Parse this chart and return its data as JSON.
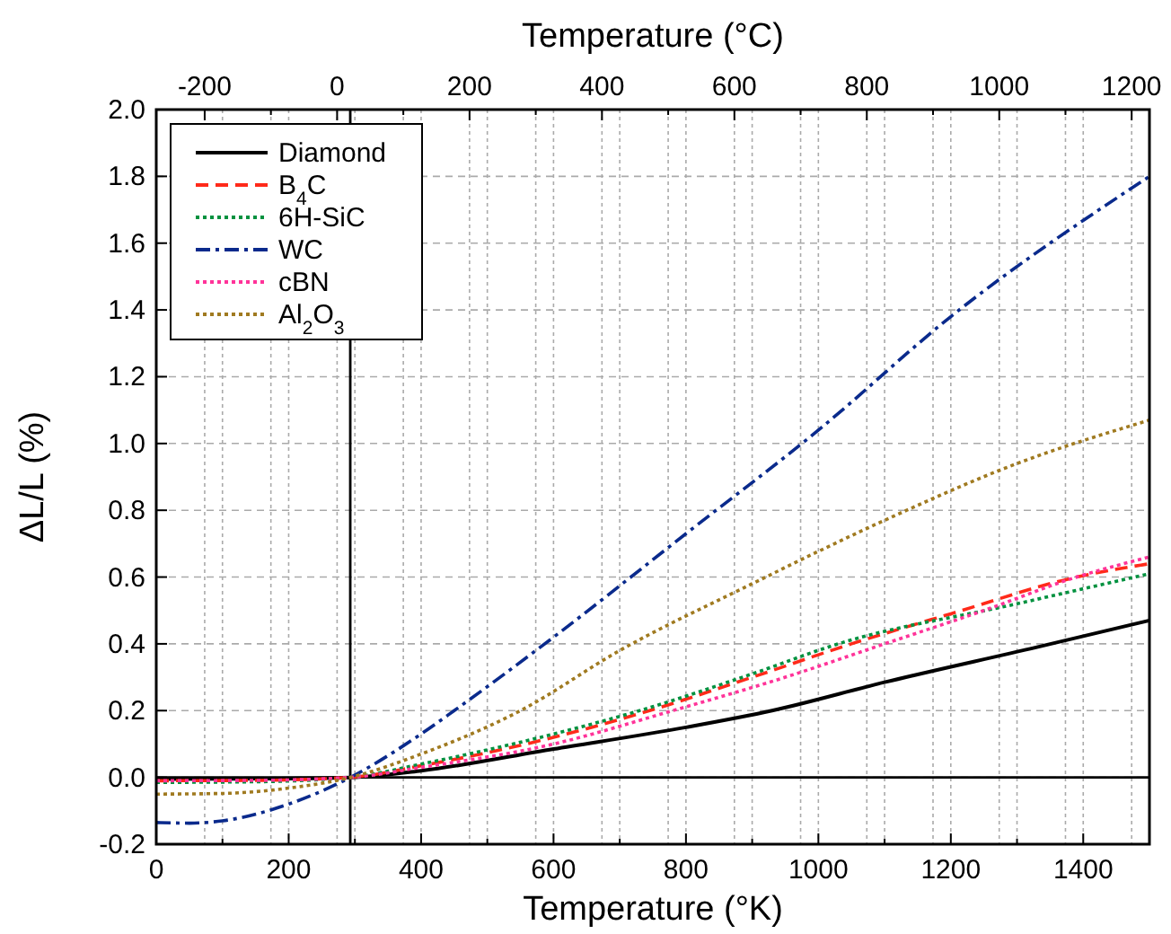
{
  "chart_data": {
    "type": "line",
    "xlabel": "Temperature (°K)",
    "x2label": "Temperature (°C)",
    "ylabel": "ΔL/L (%)",
    "xlim": [
      0,
      1500
    ],
    "xticks": [
      0,
      {
        "value": 100,
        "label": null
      },
      200,
      {
        "value": 300,
        "label": null
      },
      400,
      {
        "value": 500,
        "label": null
      },
      600,
      {
        "value": 700,
        "label": null
      },
      800,
      {
        "value": 900,
        "label": null
      },
      1000,
      {
        "value": 1100,
        "label": null
      },
      1200,
      {
        "value": 1300,
        "label": null
      },
      1400
    ],
    "x2lim": [
      -273.15,
      1226.85
    ],
    "x2ticks": [
      -200,
      {
        "value": -100,
        "label": null
      },
      0,
      {
        "value": 100,
        "label": null
      },
      200,
      {
        "value": 300,
        "label": null
      },
      400,
      {
        "value": 500,
        "label": null
      },
      600,
      {
        "value": 700,
        "label": null
      },
      800,
      {
        "value": 900,
        "label": null
      },
      1000,
      {
        "value": 1100,
        "label": null
      },
      1200
    ],
    "ylim": [
      -0.2,
      2.0
    ],
    "yticks": [
      {
        "value": -0.2,
        "label": "-0.2"
      },
      {
        "value": 0,
        "label": "0.0"
      },
      {
        "value": 0.2,
        "label": "0.2"
      },
      {
        "value": 0.4,
        "label": "0.4"
      },
      {
        "value": 0.6,
        "label": "0.6"
      },
      {
        "value": 0.8,
        "label": "0.8"
      },
      {
        "value": 1,
        "label": "1.0"
      },
      {
        "value": 1.2,
        "label": "1.2"
      },
      {
        "value": 1.4,
        "label": "1.4"
      },
      {
        "value": 1.6,
        "label": "1.6"
      },
      {
        "value": 1.8,
        "label": "1.8"
      },
      {
        "value": 2,
        "label": "2.0"
      }
    ],
    "grid": true,
    "legend": "top left",
    "ref_lines": [
      {
        "axis": "x",
        "value": 293,
        "color": "#000000",
        "line_style": "solid"
      },
      {
        "axis": "y",
        "value": 0,
        "color": "#000000",
        "line_style": "solid"
      }
    ],
    "series": [
      {
        "name": "Diamond",
        "color": "#000000",
        "line_style": "solid",
        "x": [
          0,
          150,
          293,
          400,
          600,
          800,
          930,
          1100,
          1330,
          1500
        ],
        "values": [
          -0.005,
          -0.004,
          0,
          0.02,
          0.085,
          0.15,
          0.2,
          0.285,
          0.39,
          0.47
        ]
      },
      {
        "name": "B$_{4}$C",
        "color": "#ff2a1a",
        "line_style": "dashed",
        "x": [
          0,
          150,
          293,
          400,
          600,
          745,
          900,
          1050,
          1200,
          1390,
          1500
        ],
        "values": [
          -0.01,
          -0.009,
          0,
          0.035,
          0.12,
          0.2,
          0.3,
          0.4,
          0.49,
          0.6,
          0.64
        ]
      },
      {
        "name": "6H-SiC",
        "color": "#00913f",
        "line_style": "dotted",
        "x": [
          0,
          150,
          293,
          400,
          600,
          730,
          900,
          1030,
          1300,
          1500
        ],
        "values": [
          -0.015,
          -0.013,
          0,
          0.04,
          0.13,
          0.2,
          0.31,
          0.4,
          0.52,
          0.61
        ]
      },
      {
        "name": "WC",
        "color": "#0a2a8c",
        "line_style": "dashdot",
        "x": [
          0,
          50,
          100,
          200,
          293,
          400,
          450,
          600,
          800,
          1000,
          1200,
          1500
        ],
        "values": [
          -0.135,
          -0.137,
          -0.13,
          -0.08,
          0,
          0.13,
          0.2,
          0.42,
          0.73,
          1.04,
          1.38,
          1.8
        ]
      },
      {
        "name": "cBN",
        "color": "#ff3399",
        "line_style": "dotted",
        "x": [
          0,
          150,
          293,
          400,
          600,
          780,
          950,
          1100,
          1250,
          1390,
          1500
        ],
        "values": [
          -0.01,
          -0.009,
          0,
          0.03,
          0.1,
          0.2,
          0.3,
          0.4,
          0.5,
          0.6,
          0.66
        ]
      },
      {
        "name": "Al$_{2}$O$_{3}$",
        "color": "#a07a20",
        "line_style": "dotted",
        "x": [
          0,
          100,
          200,
          293,
          400,
          550,
          700,
          900,
          1100,
          1300,
          1500
        ],
        "values": [
          -0.05,
          -0.048,
          -0.032,
          0,
          0.07,
          0.2,
          0.38,
          0.58,
          0.77,
          0.94,
          1.07
        ]
      }
    ]
  }
}
